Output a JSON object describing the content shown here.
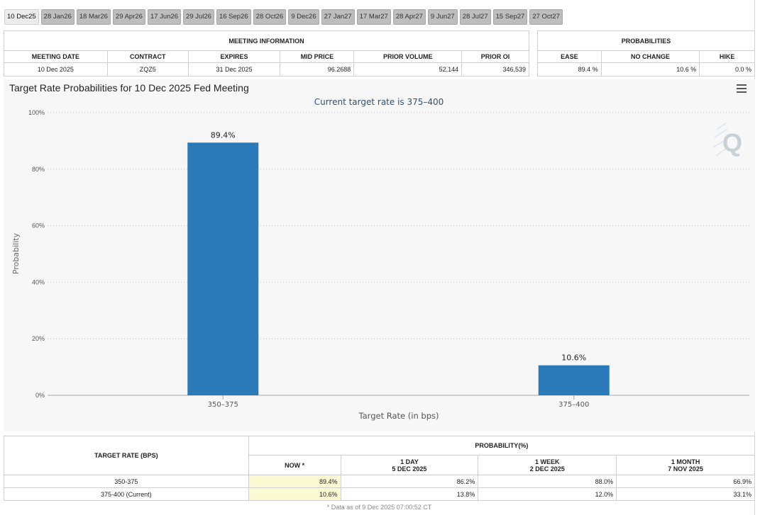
{
  "tabs": [
    "10 Dec25",
    "28 Jan26",
    "18 Mar26",
    "29 Apr26",
    "17 Jun26",
    "29 Jul26",
    "16 Sep26",
    "28 Oct26",
    "9 Dec26",
    "27 Jan27",
    "17 Mar27",
    "28 Apr27",
    "9 Jun27",
    "28 Jul27",
    "15 Sep27",
    "27 Oct27"
  ],
  "meeting_info": {
    "title": "MEETING INFORMATION",
    "headers": [
      "MEETING DATE",
      "CONTRACT",
      "EXPIRES",
      "MID PRICE",
      "PRIOR VOLUME",
      "PRIOR OI"
    ],
    "values": {
      "meeting_date": "10 Dec 2025",
      "contract": "ZQZ5",
      "expires": "31 Dec 2025",
      "mid_price": "96.2688",
      "prior_volume": "52,144",
      "prior_oi": "346,539"
    }
  },
  "probabilities": {
    "title": "PROBABILITIES",
    "headers": [
      "EASE",
      "NO CHANGE",
      "HIKE"
    ],
    "values": {
      "ease": "89.4 %",
      "no_change": "10.6 %",
      "hike": "0.0 %"
    }
  },
  "chart": {
    "title": "Target Rate Probabilities for 10 Dec 2025 Fed Meeting",
    "menu_icon": "hamburger-menu-icon",
    "watermark_icon": "q-logo-icon",
    "bar_color": "#2b7bba"
  },
  "chart_data": {
    "type": "bar",
    "title": "Target Rate Probabilities for 10 Dec 2025 Fed Meeting",
    "subtitle": "Current target rate is 375–400",
    "categories": [
      "350–375",
      "375–400"
    ],
    "values": [
      89.4,
      10.6
    ],
    "value_labels": [
      "89.4%",
      "10.6%"
    ],
    "xlabel": "Target Rate (in bps)",
    "ylabel": "Probability",
    "ylim": [
      0,
      100
    ],
    "yticks": [
      0,
      20,
      40,
      60,
      80,
      100
    ],
    "ytick_labels": [
      "0%",
      "20%",
      "40%",
      "60%",
      "80%",
      "100%"
    ],
    "grid": true
  },
  "bottom_table": {
    "target_rate_header": "TARGET RATE (BPS)",
    "probability_header": "PROBABILITY(%)",
    "columns": [
      {
        "label": "NOW *",
        "sublabel": ""
      },
      {
        "label": "1 DAY",
        "sublabel": "5 DEC 2025"
      },
      {
        "label": "1 WEEK",
        "sublabel": "2 DEC 2025"
      },
      {
        "label": "1 MONTH",
        "sublabel": "7 NOV 2025"
      }
    ],
    "rows": [
      {
        "rate": "350-375",
        "now": "89.4%",
        "day": "86.2%",
        "week": "88.0%",
        "month": "66.9%"
      },
      {
        "rate": "375-400 (Current)",
        "now": "10.6%",
        "day": "13.8%",
        "week": "12.0%",
        "month": "33.1%"
      }
    ],
    "footnote": "* Data as of 9 Dec 2025 07:00:52 CT"
  }
}
